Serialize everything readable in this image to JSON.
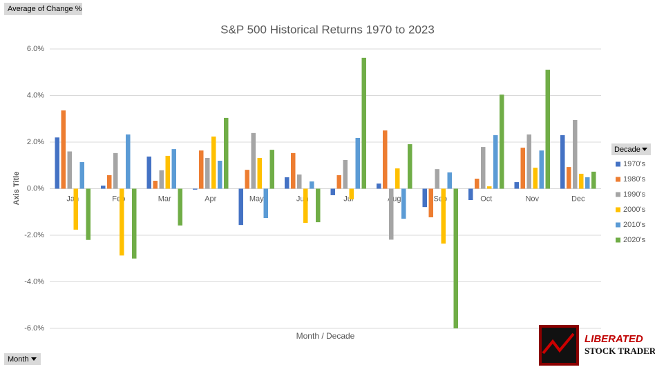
{
  "chart_data": {
    "type": "bar",
    "title": "S&P 500 Historical Returns 1970 to 2023",
    "y_axis_title": "Axis Title",
    "x_axis_title": "Month / Decade",
    "legend_title": "Decade",
    "legend_position": "right",
    "grid": true,
    "categories": [
      "Jan",
      "Feb",
      "Mar",
      "Apr",
      "May",
      "Jun",
      "Jul",
      "Aug",
      "Sep",
      "Oct",
      "Nov",
      "Dec"
    ],
    "series": [
      {
        "name": "1970's",
        "color": "#4472c4",
        "values": [
          2.2,
          0.13,
          1.38,
          -0.04,
          -1.56,
          0.49,
          -0.28,
          0.22,
          -0.79,
          -0.49,
          0.28,
          2.3
        ]
      },
      {
        "name": "1980's",
        "color": "#ed7d31",
        "values": [
          3.36,
          0.58,
          0.34,
          1.64,
          0.81,
          1.53,
          0.58,
          2.5,
          -1.23,
          0.43,
          1.76,
          0.93
        ]
      },
      {
        "name": "1990's",
        "color": "#a5a5a5",
        "values": [
          1.6,
          1.53,
          0.79,
          1.32,
          2.39,
          0.61,
          1.23,
          -2.19,
          0.84,
          1.79,
          2.33,
          2.95
        ]
      },
      {
        "name": "2000's",
        "color": "#ffc000",
        "values": [
          -1.76,
          -2.87,
          1.41,
          2.24,
          1.32,
          -1.47,
          -0.46,
          0.87,
          -2.36,
          0.1,
          0.9,
          0.64
        ]
      },
      {
        "name": "2010's",
        "color": "#5b9bd5",
        "values": [
          1.14,
          2.33,
          1.7,
          1.2,
          -1.26,
          0.31,
          2.18,
          -1.29,
          0.7,
          2.3,
          1.64,
          0.49
        ]
      },
      {
        "name": "2020's",
        "color": "#70ad47",
        "values": [
          -2.2,
          -3.0,
          -1.58,
          3.04,
          1.67,
          -1.44,
          5.62,
          1.91,
          -6.0,
          4.04,
          5.11,
          0.73
        ]
      }
    ],
    "ylim": [
      -6,
      6
    ],
    "yticks": [
      {
        "value": -6,
        "label": "-6.0%"
      },
      {
        "value": -4,
        "label": "-4.0%"
      },
      {
        "value": -2,
        "label": "-2.0%"
      },
      {
        "value": 0,
        "label": "0.0%"
      },
      {
        "value": 2,
        "label": "2.0%"
      },
      {
        "value": 4,
        "label": "4.0%"
      },
      {
        "value": 6,
        "label": "6.0%"
      }
    ]
  },
  "field_buttons": {
    "values": "Average of Change %",
    "axis": "Month"
  },
  "logo": {
    "line1": "LIBERATED",
    "line2": "STOCK TRADER"
  }
}
